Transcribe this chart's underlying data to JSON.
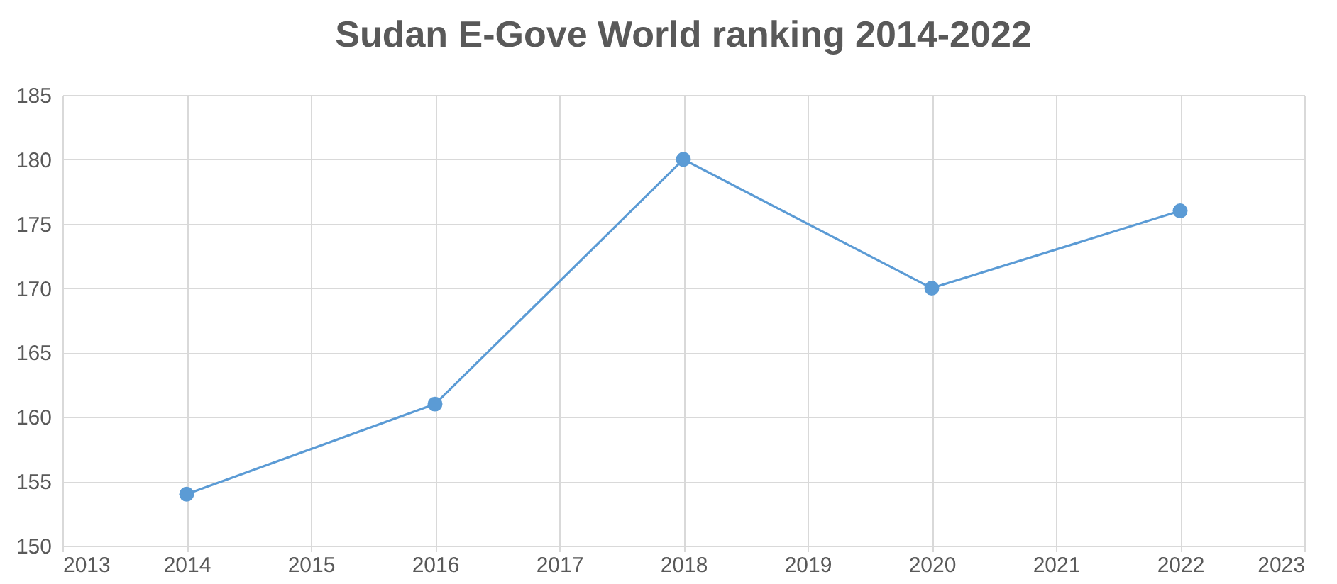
{
  "chart_data": {
    "type": "line",
    "title": "Sudan E-Gove World ranking 2014-2022",
    "x": [
      2014,
      2016,
      2018,
      2020,
      2022
    ],
    "series": [
      {
        "color": "#5b9bd5",
        "values": [
          154,
          161,
          180,
          170,
          176
        ]
      }
    ],
    "xlim": [
      2013,
      2023
    ],
    "xticks": [
      2013,
      2014,
      2015,
      2016,
      2017,
      2018,
      2019,
      2020,
      2021,
      2022,
      2023
    ],
    "ylim": [
      150,
      185
    ],
    "yticks": [
      150,
      155,
      160,
      165,
      170,
      175,
      180,
      185
    ],
    "grid": true,
    "marker": "circle",
    "line_style": "solid"
  }
}
